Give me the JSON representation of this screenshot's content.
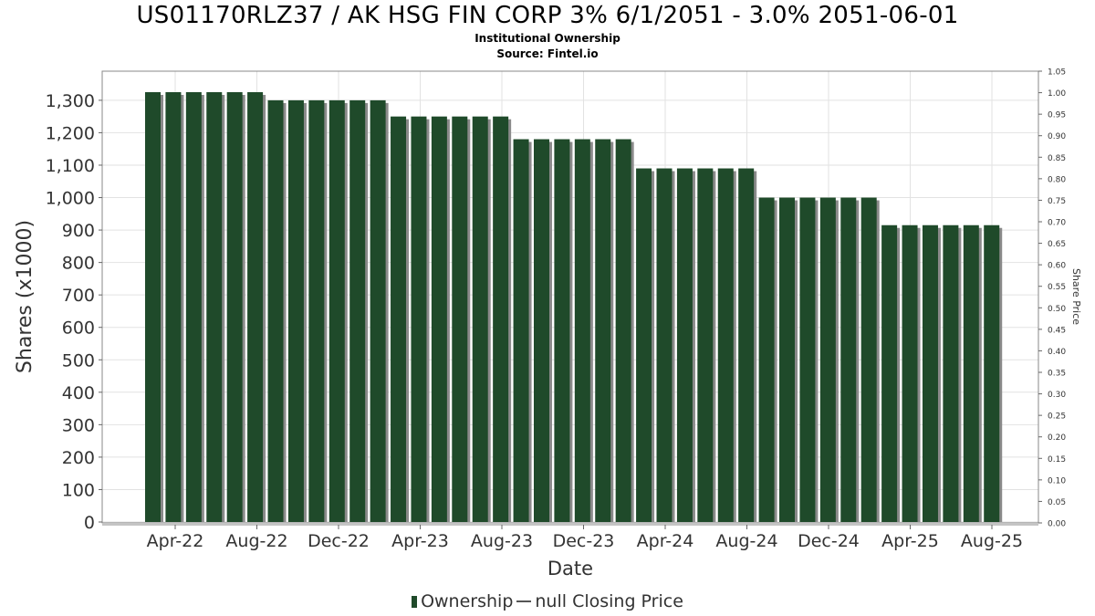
{
  "header": {
    "title": "US01170RLZ37 / AK HSG FIN CORP 3% 6/1/2051 - 3.0% 2051-06-01",
    "subtitle": "Institutional Ownership",
    "source": "Source: Fintel.io"
  },
  "legend": {
    "ownership": "Ownership",
    "price": "null Closing Price"
  },
  "colors": {
    "bar": "#1f4a2a",
    "bar_shadow": "#8a8a8a",
    "grid": "#e2e2e2"
  },
  "chart_data": {
    "type": "bar",
    "xlabel": "Date",
    "ylabel": "Shares (x1000)",
    "y2label": "Share Price",
    "ylim": [
      0,
      1400
    ],
    "y2lim": [
      0,
      1.05
    ],
    "grid": true,
    "legend_position": "bottom-center",
    "y_ticks": [
      0,
      100,
      200,
      300,
      400,
      500,
      600,
      700,
      800,
      900,
      1000,
      1100,
      1200,
      1300
    ],
    "y_tick_labels": [
      "0",
      "100",
      "200",
      "300",
      "400",
      "500",
      "600",
      "700",
      "800",
      "900",
      "1,000",
      "1,100",
      "1,200",
      "1,300"
    ],
    "y2_tick_labels": [
      "0.00",
      "0.05",
      "0.10",
      "0.15",
      "0.20",
      "0.25",
      "0.30",
      "0.35",
      "0.40",
      "0.45",
      "0.50",
      "0.55",
      "0.60",
      "0.65",
      "0.70",
      "0.75",
      "0.80",
      "0.85",
      "0.90",
      "0.95",
      "1.00",
      "1.05"
    ],
    "x_tick_labels": [
      "Apr-22",
      "Aug-22",
      "Dec-22",
      "Apr-23",
      "Aug-23",
      "Dec-23",
      "Apr-24",
      "Aug-24",
      "Dec-24",
      "Apr-25",
      "Aug-25"
    ],
    "series": [
      {
        "name": "Ownership",
        "values": [
          1325,
          1325,
          1325,
          1325,
          1325,
          1325,
          1300,
          1300,
          1300,
          1300,
          1300,
          1300,
          1250,
          1250,
          1250,
          1250,
          1250,
          1250,
          1180,
          1180,
          1180,
          1180,
          1180,
          1180,
          1090,
          1090,
          1090,
          1090,
          1090,
          1090,
          1000,
          1000,
          1000,
          1000,
          1000,
          1000,
          915,
          915,
          915,
          915,
          915,
          915
        ]
      }
    ]
  }
}
